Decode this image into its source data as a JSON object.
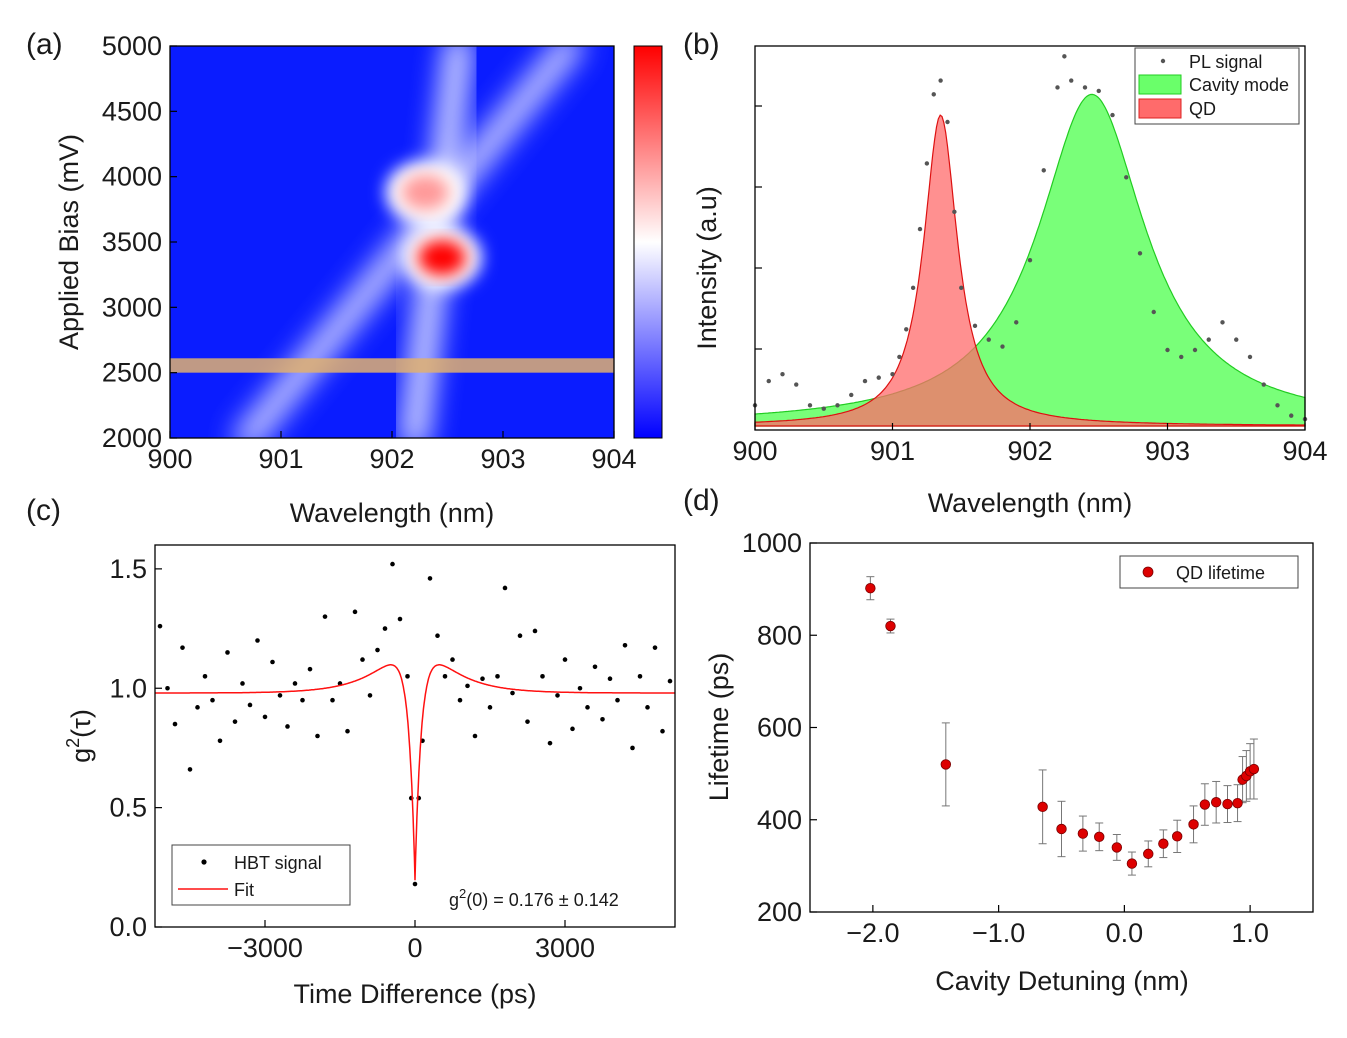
{
  "chart_data": [
    {
      "panel_label": "(a)",
      "type": "heatmap",
      "xlabel": "Wavelength (nm)",
      "ylabel": "Applied Bias (mV)",
      "xlim": [
        900,
        904
      ],
      "ylim": [
        2000,
        5000
      ],
      "xticks": [
        "900",
        "901",
        "902",
        "903",
        "904"
      ],
      "yticks": [
        "2000",
        "2500",
        "3000",
        "3500",
        "4000",
        "4500",
        "5000"
      ],
      "colormap": [
        "#0000ff",
        "#ffffff",
        "#ff0000"
      ],
      "highlight_band": {
        "bias_from": 2500,
        "bias_to": 2610,
        "color": "#e0b070"
      },
      "features": [
        {
          "name": "qd-line",
          "from": [
            900.7,
            2000
          ],
          "to": [
            903.6,
            5000
          ],
          "intensity": 0.45
        },
        {
          "name": "cavity-line",
          "from": [
            902.2,
            2000
          ],
          "to": [
            902.6,
            5000
          ],
          "intensity": 0.5
        },
        {
          "name": "anticrossing-spot",
          "center": [
            902.45,
            3380
          ],
          "intensity": 1.0
        },
        {
          "name": "upper-spot",
          "center": [
            902.3,
            3880
          ],
          "intensity": 0.7
        }
      ]
    },
    {
      "panel_label": "(b)",
      "type": "line",
      "xlabel": "Wavelength (nm)",
      "ylabel": "Intensity (a.u)",
      "xlim": [
        900,
        904
      ],
      "ylim": [
        0,
        1.1
      ],
      "xticks": [
        "900",
        "901",
        "902",
        "903",
        "904"
      ],
      "legend": [
        "PL signal",
        "Cavity mode",
        "QD"
      ],
      "series": [
        {
          "name": "Cavity mode",
          "kind": "lorentzian",
          "center": 902.45,
          "fwhm": 0.95,
          "amplitude": 0.96,
          "offset": 0.0,
          "color": "#6aff6a"
        },
        {
          "name": "QD",
          "kind": "lorentzian",
          "center": 901.35,
          "fwhm": 0.3,
          "amplitude": 0.9,
          "offset": 0.0,
          "color": "#ff6b6b"
        },
        {
          "name": "PL signal",
          "kind": "scatter",
          "x": [
            900.0,
            900.1,
            900.2,
            900.3,
            900.4,
            900.5,
            900.6,
            900.7,
            900.8,
            900.9,
            901.0,
            901.05,
            901.1,
            901.15,
            901.2,
            901.25,
            901.3,
            901.35,
            901.4,
            901.45,
            901.5,
            901.6,
            901.7,
            901.8,
            901.9,
            902.0,
            902.1,
            902.2,
            902.25,
            902.3,
            902.4,
            902.5,
            902.6,
            902.7,
            902.8,
            902.9,
            903.0,
            903.1,
            903.2,
            903.3,
            903.4,
            903.5,
            903.6,
            903.7,
            903.8,
            903.9,
            904.0
          ],
          "y": [
            0.06,
            0.13,
            0.15,
            0.12,
            0.06,
            0.05,
            0.06,
            0.09,
            0.13,
            0.14,
            0.15,
            0.2,
            0.28,
            0.4,
            0.57,
            0.76,
            0.96,
            1.0,
            0.88,
            0.62,
            0.4,
            0.29,
            0.25,
            0.23,
            0.3,
            0.48,
            0.74,
            0.98,
            1.07,
            1.0,
            0.98,
            0.97,
            0.9,
            0.72,
            0.5,
            0.33,
            0.22,
            0.2,
            0.22,
            0.25,
            0.3,
            0.25,
            0.2,
            0.12,
            0.06,
            0.03,
            0.02
          ],
          "color": "#555555"
        }
      ]
    },
    {
      "panel_label": "(c)",
      "type": "scatter",
      "xlabel": "Time Difference (ps)",
      "ylabel_main": "g",
      "ylabel_sup": "2",
      "ylabel_paren": "(τ)",
      "xlim": [
        -5200,
        5200
      ],
      "ylim": [
        0.0,
        1.6
      ],
      "xticks": [
        "−3000",
        "0",
        "3000"
      ],
      "yticks": [
        "0.0",
        "0.5",
        "1.0",
        "1.5"
      ],
      "legend": [
        "HBT signal",
        "Fit"
      ],
      "annotation_main": "g",
      "annotation_sup": "2",
      "annotation_rest": "(0) = 0.176 ± 0.142",
      "fit": {
        "baseline": 0.98,
        "dip_depth": 0.8,
        "dip_tau_ps": 150,
        "bunching_amp": 0.32,
        "bunching_tau_ps": 650
      },
      "series": [
        {
          "name": "HBT signal",
          "x": [
            -5100,
            -4950,
            -4800,
            -4650,
            -4500,
            -4350,
            -4200,
            -4050,
            -3900,
            -3750,
            -3600,
            -3450,
            -3300,
            -3150,
            -3000,
            -2850,
            -2700,
            -2550,
            -2400,
            -2250,
            -2100,
            -1950,
            -1800,
            -1650,
            -1500,
            -1350,
            -1200,
            -1050,
            -900,
            -750,
            -600,
            -450,
            -300,
            -150,
            -75,
            0,
            75,
            150,
            300,
            450,
            600,
            750,
            900,
            1050,
            1200,
            1350,
            1500,
            1650,
            1800,
            1950,
            2100,
            2250,
            2400,
            2550,
            2700,
            2850,
            3000,
            3150,
            3300,
            3450,
            3600,
            3750,
            3900,
            4050,
            4200,
            4350,
            4500,
            4650,
            4800,
            4950,
            5100
          ],
          "y": [
            1.26,
            1.0,
            0.85,
            1.17,
            0.66,
            0.92,
            1.05,
            0.95,
            0.78,
            1.15,
            0.86,
            1.02,
            0.93,
            1.2,
            0.88,
            1.11,
            0.97,
            0.84,
            1.02,
            0.95,
            1.08,
            0.8,
            1.3,
            0.95,
            1.02,
            0.82,
            1.32,
            1.12,
            0.97,
            1.16,
            1.25,
            1.52,
            1.29,
            1.05,
            0.54,
            0.18,
            0.54,
            0.78,
            1.46,
            1.22,
            1.05,
            1.12,
            0.95,
            1.01,
            0.8,
            1.04,
            0.92,
            1.05,
            1.42,
            0.98,
            1.22,
            0.86,
            1.24,
            1.05,
            0.77,
            0.97,
            1.12,
            0.83,
            1.0,
            0.92,
            1.09,
            0.87,
            1.04,
            0.95,
            1.18,
            0.75,
            1.05,
            0.92,
            1.17,
            0.82,
            1.03
          ],
          "color": "#000000"
        }
      ]
    },
    {
      "panel_label": "(d)",
      "type": "scatter",
      "xlabel": "Cavity Detuning (nm)",
      "ylabel": "Lifetime (ps)",
      "xlim": [
        -2.5,
        1.5
      ],
      "ylim": [
        200,
        1000
      ],
      "xticks": [
        "−2.0",
        "−1.0",
        "0.0",
        "1.0"
      ],
      "yticks": [
        "200",
        "400",
        "600",
        "800",
        "1000"
      ],
      "legend": [
        "QD lifetime"
      ],
      "series": [
        {
          "name": "QD lifetime",
          "x": [
            -2.02,
            -1.86,
            -1.42,
            -0.65,
            -0.5,
            -0.33,
            -0.2,
            -0.06,
            0.06,
            0.19,
            0.31,
            0.42,
            0.55,
            0.64,
            0.73,
            0.82,
            0.9,
            0.94,
            0.97,
            1.0,
            1.03
          ],
          "y": [
            902,
            820,
            520,
            428,
            380,
            370,
            363,
            340,
            305,
            326,
            348,
            364,
            390,
            433,
            438,
            434,
            436,
            487,
            495,
            505,
            510
          ],
          "err": [
            25,
            15,
            90,
            80,
            60,
            38,
            30,
            28,
            25,
            28,
            30,
            35,
            40,
            45,
            45,
            40,
            40,
            50,
            55,
            60,
            65
          ],
          "color": "#dd0000"
        }
      ]
    }
  ]
}
